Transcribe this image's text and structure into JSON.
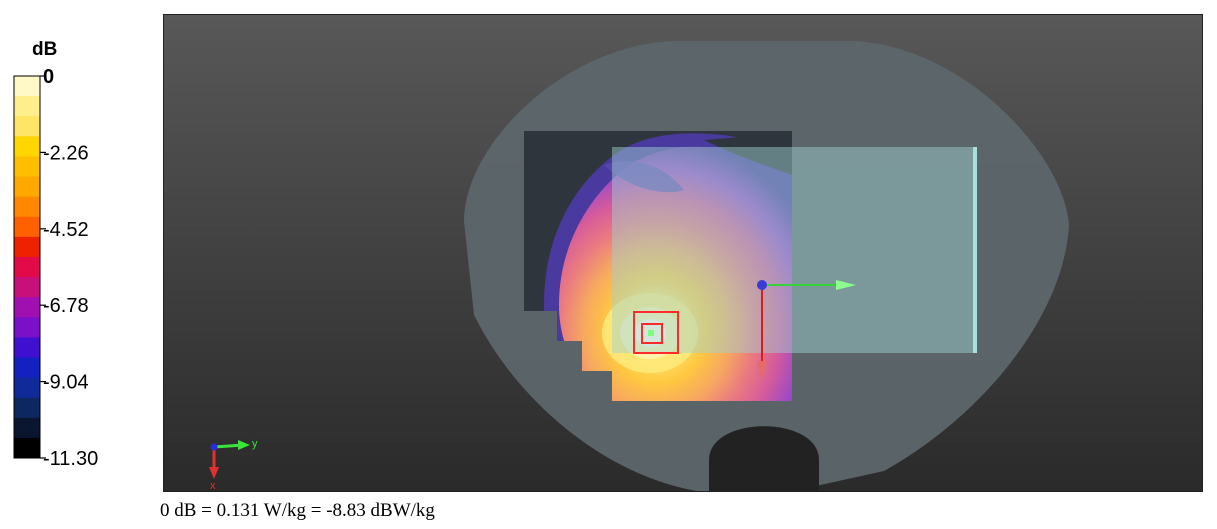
{
  "chart_data": {
    "type": "heatmap",
    "colorbar": {
      "unit": "dB",
      "min": -11.3,
      "max": 0,
      "tick_labels": [
        "0",
        "-2.26",
        "-4.52",
        "-6.78",
        "-9.04",
        "-11.30"
      ],
      "colors": [
        "#fff9c8",
        "#ffef8c",
        "#ffe566",
        "#ffd600",
        "#ffbf00",
        "#ffa800",
        "#ff8800",
        "#ff6000",
        "#ee2200",
        "#e30a4a",
        "#c8107a",
        "#a010b0",
        "#7a10c8",
        "#4010d0",
        "#1520c0",
        "#102a9a",
        "#0d2860",
        "#0a1530",
        "#000000"
      ]
    },
    "orientation_axes": {
      "y_label": "y",
      "x_label": "x"
    }
  },
  "caption": "0 dB = 0.131 W/kg = -8.83 dBW/kg"
}
